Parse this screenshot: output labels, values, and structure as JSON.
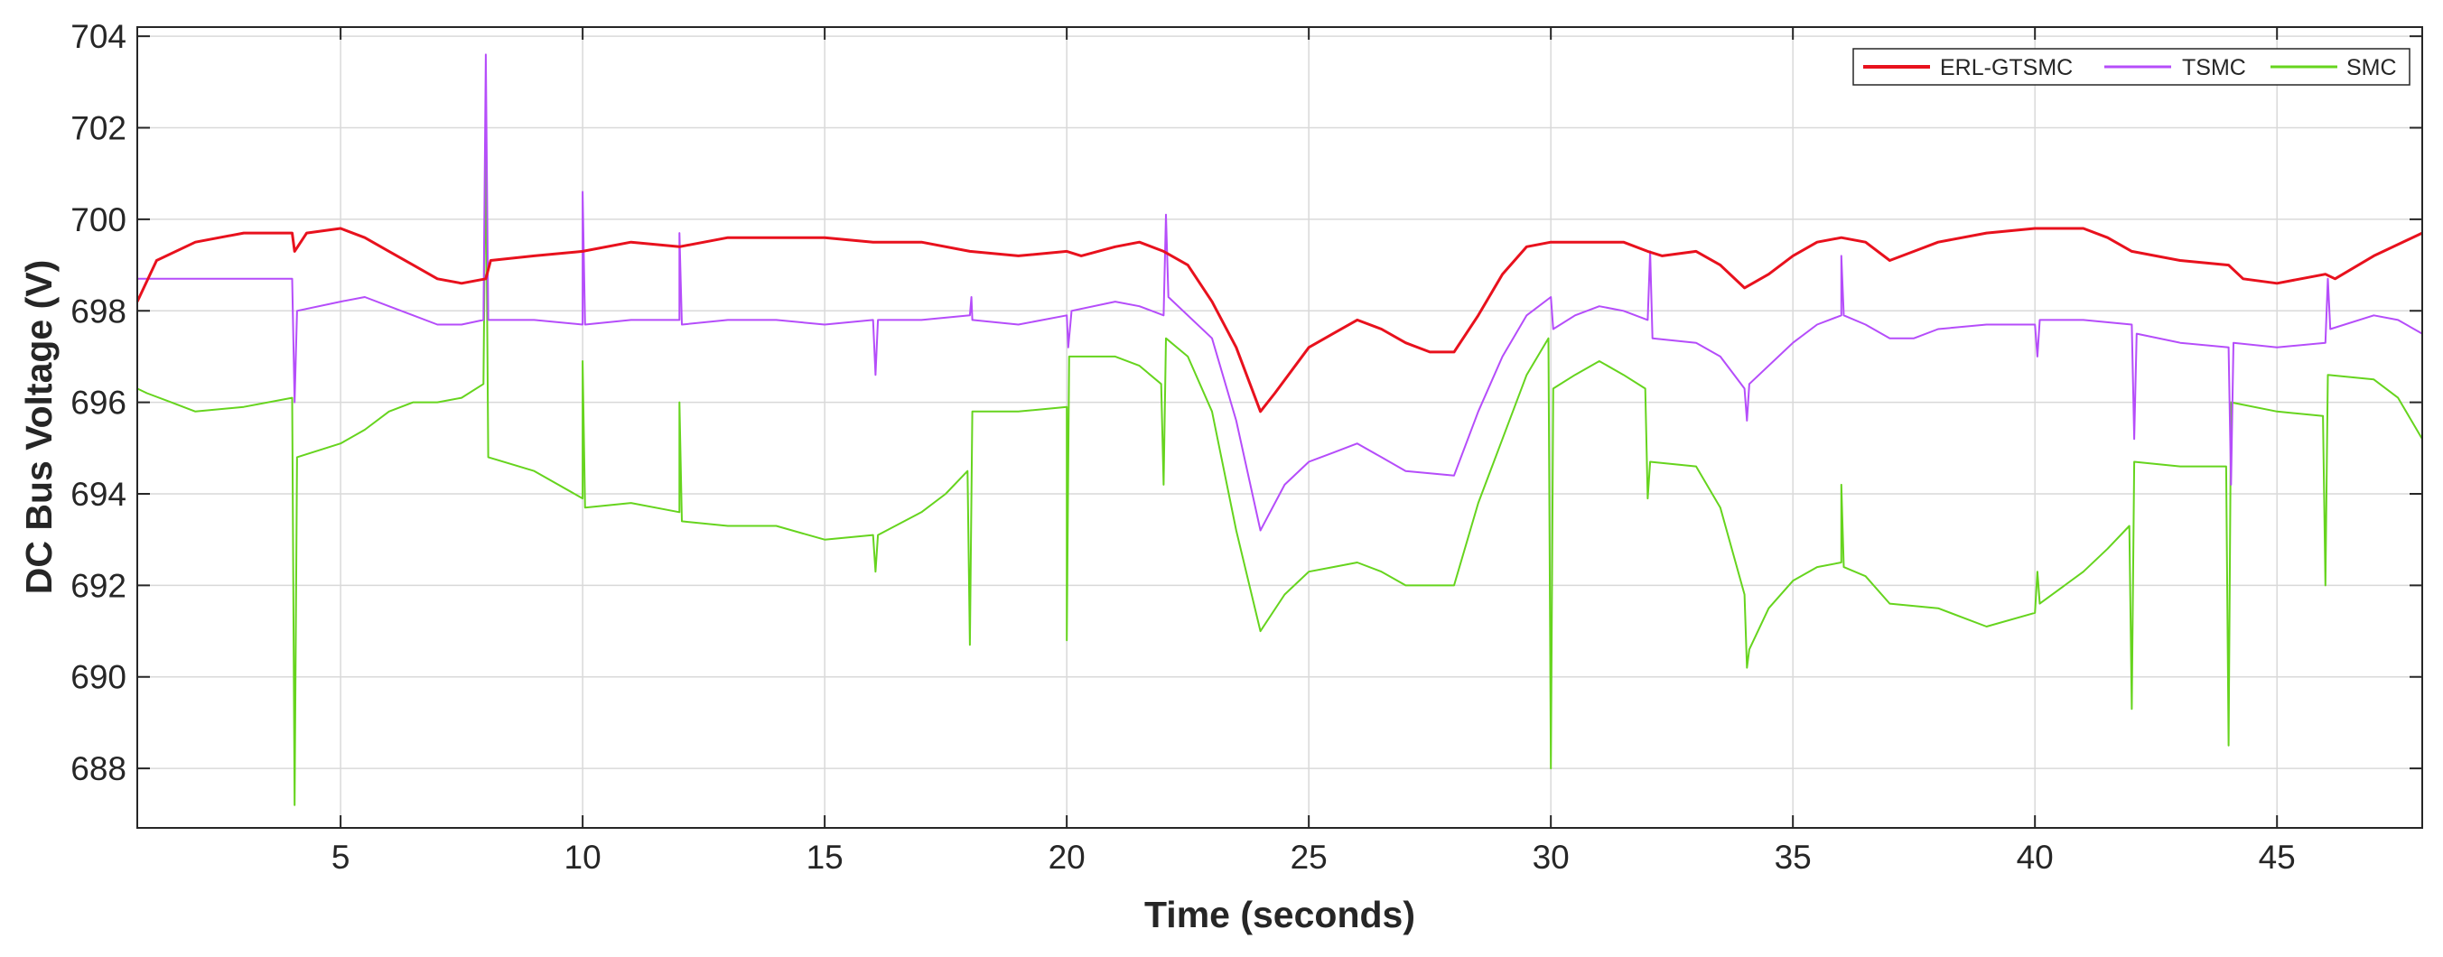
{
  "chart_data": {
    "type": "line",
    "xlabel": "Time (seconds)",
    "ylabel": "DC Bus Voltage (V)",
    "xlim": [
      0.8,
      48.0
    ],
    "ylim": [
      686.7,
      704.2
    ],
    "xticks": [
      5,
      10,
      15,
      20,
      25,
      30,
      35,
      40,
      45
    ],
    "yticks": [
      688,
      690,
      692,
      694,
      696,
      698,
      700,
      702,
      704
    ],
    "grid": true,
    "legend_position": "top-right",
    "series": [
      {
        "name": "ERL-GTSMC",
        "color": "#e8111d",
        "linewidth": 3,
        "points": [
          [
            0.8,
            698.2
          ],
          [
            1.2,
            699.1
          ],
          [
            2,
            699.5
          ],
          [
            3,
            699.7
          ],
          [
            4,
            699.7
          ],
          [
            4.05,
            699.3
          ],
          [
            4.3,
            699.7
          ],
          [
            5,
            699.8
          ],
          [
            5.5,
            699.6
          ],
          [
            6,
            699.3
          ],
          [
            6.5,
            699.0
          ],
          [
            7,
            698.7
          ],
          [
            7.5,
            698.6
          ],
          [
            8,
            698.7
          ],
          [
            8.1,
            699.1
          ],
          [
            9,
            699.2
          ],
          [
            10,
            699.3
          ],
          [
            11,
            699.5
          ],
          [
            12,
            699.4
          ],
          [
            13,
            699.6
          ],
          [
            14,
            699.6
          ],
          [
            15,
            699.6
          ],
          [
            16,
            699.5
          ],
          [
            17,
            699.5
          ],
          [
            18,
            699.3
          ],
          [
            19,
            699.2
          ],
          [
            20,
            699.3
          ],
          [
            20.3,
            699.2
          ],
          [
            21,
            699.4
          ],
          [
            21.5,
            699.5
          ],
          [
            22,
            699.3
          ],
          [
            22.5,
            699.0
          ],
          [
            23,
            698.2
          ],
          [
            23.5,
            697.2
          ],
          [
            24,
            695.8
          ],
          [
            24.3,
            696.2
          ],
          [
            25,
            697.2
          ],
          [
            25.5,
            697.5
          ],
          [
            26,
            697.8
          ],
          [
            26.5,
            697.6
          ],
          [
            27,
            697.3
          ],
          [
            27.5,
            697.1
          ],
          [
            28,
            697.1
          ],
          [
            28.5,
            697.9
          ],
          [
            29,
            698.8
          ],
          [
            29.5,
            699.4
          ],
          [
            30,
            699.5
          ],
          [
            31,
            699.5
          ],
          [
            31.5,
            699.5
          ],
          [
            32,
            699.3
          ],
          [
            32.3,
            699.2
          ],
          [
            33,
            699.3
          ],
          [
            33.5,
            699.0
          ],
          [
            34,
            698.5
          ],
          [
            34.5,
            698.8
          ],
          [
            35,
            699.2
          ],
          [
            35.5,
            699.5
          ],
          [
            36,
            699.6
          ],
          [
            36.5,
            699.5
          ],
          [
            37,
            699.1
          ],
          [
            37.5,
            699.3
          ],
          [
            38,
            699.5
          ],
          [
            39,
            699.7
          ],
          [
            40,
            699.8
          ],
          [
            41,
            699.8
          ],
          [
            41.5,
            699.6
          ],
          [
            42,
            699.3
          ],
          [
            43,
            699.1
          ],
          [
            44,
            699.0
          ],
          [
            44.3,
            698.7
          ],
          [
            45,
            698.6
          ],
          [
            46,
            698.8
          ],
          [
            46.2,
            698.7
          ],
          [
            47,
            699.2
          ],
          [
            48,
            699.7
          ]
        ]
      },
      {
        "name": "TSMC",
        "color": "#b54dfa",
        "linewidth": 2,
        "points": [
          [
            0.8,
            698.7
          ],
          [
            2,
            698.7
          ],
          [
            3,
            698.7
          ],
          [
            4,
            698.7
          ],
          [
            4.05,
            696.0
          ],
          [
            4.1,
            698.0
          ],
          [
            5,
            698.2
          ],
          [
            5.5,
            698.3
          ],
          [
            6,
            698.1
          ],
          [
            6.5,
            697.9
          ],
          [
            7,
            697.7
          ],
          [
            7.5,
            697.7
          ],
          [
            7.95,
            697.8
          ],
          [
            8,
            703.6
          ],
          [
            8.05,
            697.8
          ],
          [
            9,
            697.8
          ],
          [
            10,
            697.7
          ],
          [
            10,
            700.6
          ],
          [
            10.05,
            697.7
          ],
          [
            11,
            697.8
          ],
          [
            12,
            697.8
          ],
          [
            12,
            699.7
          ],
          [
            12.05,
            697.7
          ],
          [
            13,
            697.8
          ],
          [
            14,
            697.8
          ],
          [
            15,
            697.7
          ],
          [
            16,
            697.8
          ],
          [
            16.05,
            696.6
          ],
          [
            16.1,
            697.8
          ],
          [
            17,
            697.8
          ],
          [
            18,
            697.9
          ],
          [
            18.03,
            698.3
          ],
          [
            18.05,
            697.8
          ],
          [
            19,
            697.7
          ],
          [
            20,
            697.9
          ],
          [
            20.03,
            697.2
          ],
          [
            20.1,
            698.0
          ],
          [
            21,
            698.2
          ],
          [
            21.5,
            698.1
          ],
          [
            22,
            697.9
          ],
          [
            22.05,
            700.1
          ],
          [
            22.1,
            698.3
          ],
          [
            23,
            697.4
          ],
          [
            23.5,
            695.6
          ],
          [
            24,
            693.2
          ],
          [
            24.5,
            694.2
          ],
          [
            25,
            694.7
          ],
          [
            25.5,
            694.9
          ],
          [
            26,
            695.1
          ],
          [
            26.5,
            694.8
          ],
          [
            27,
            694.5
          ],
          [
            28,
            694.4
          ],
          [
            28.5,
            695.8
          ],
          [
            29,
            697.0
          ],
          [
            29.5,
            697.9
          ],
          [
            30,
            698.3
          ],
          [
            30.05,
            697.6
          ],
          [
            30.5,
            697.9
          ],
          [
            31,
            698.1
          ],
          [
            31.5,
            698.0
          ],
          [
            32,
            697.8
          ],
          [
            32.05,
            699.3
          ],
          [
            32.1,
            697.4
          ],
          [
            33,
            697.3
          ],
          [
            33.5,
            697.0
          ],
          [
            34,
            696.3
          ],
          [
            34.05,
            695.6
          ],
          [
            34.1,
            696.4
          ],
          [
            35,
            697.3
          ],
          [
            35.5,
            697.7
          ],
          [
            36,
            697.9
          ],
          [
            36,
            699.2
          ],
          [
            36.05,
            697.9
          ],
          [
            36.5,
            697.7
          ],
          [
            37,
            697.4
          ],
          [
            37.5,
            697.4
          ],
          [
            38,
            697.6
          ],
          [
            39,
            697.7
          ],
          [
            40,
            697.7
          ],
          [
            40.05,
            697.0
          ],
          [
            40.1,
            697.8
          ],
          [
            41,
            697.8
          ],
          [
            42,
            697.7
          ],
          [
            42.05,
            695.2
          ],
          [
            42.1,
            697.5
          ],
          [
            43,
            697.3
          ],
          [
            44,
            697.2
          ],
          [
            44.05,
            694.2
          ],
          [
            44.1,
            697.3
          ],
          [
            45,
            697.2
          ],
          [
            46,
            697.3
          ],
          [
            46.05,
            698.7
          ],
          [
            46.1,
            697.6
          ],
          [
            47,
            697.9
          ],
          [
            47.5,
            697.8
          ],
          [
            48,
            697.5
          ]
        ]
      },
      {
        "name": "SMC",
        "color": "#66d41e",
        "linewidth": 2,
        "points": [
          [
            0.8,
            696.3
          ],
          [
            1,
            696.2
          ],
          [
            1.5,
            696.0
          ],
          [
            2,
            695.8
          ],
          [
            3,
            695.9
          ],
          [
            4,
            696.1
          ],
          [
            4.05,
            687.2
          ],
          [
            4.1,
            694.8
          ],
          [
            5,
            695.1
          ],
          [
            5.5,
            695.4
          ],
          [
            6,
            695.8
          ],
          [
            6.5,
            696.0
          ],
          [
            7,
            696.0
          ],
          [
            7.5,
            696.1
          ],
          [
            7.95,
            696.4
          ],
          [
            8,
            701.8
          ],
          [
            8.05,
            694.8
          ],
          [
            9,
            694.5
          ],
          [
            10,
            693.9
          ],
          [
            10,
            696.9
          ],
          [
            10.05,
            693.7
          ],
          [
            11,
            693.8
          ],
          [
            12,
            693.6
          ],
          [
            12,
            696.0
          ],
          [
            12.05,
            693.4
          ],
          [
            13,
            693.3
          ],
          [
            14,
            693.3
          ],
          [
            15,
            693.0
          ],
          [
            16,
            693.1
          ],
          [
            16.05,
            692.3
          ],
          [
            16.1,
            693.1
          ],
          [
            17,
            693.6
          ],
          [
            17.5,
            694.0
          ],
          [
            17.95,
            694.5
          ],
          [
            18,
            690.7
          ],
          [
            18.05,
            695.8
          ],
          [
            19,
            695.8
          ],
          [
            20,
            695.9
          ],
          [
            20,
            690.8
          ],
          [
            20.05,
            697.0
          ],
          [
            21,
            697.0
          ],
          [
            21.5,
            696.8
          ],
          [
            21.95,
            696.4
          ],
          [
            22,
            694.2
          ],
          [
            22.05,
            697.4
          ],
          [
            22.5,
            697.0
          ],
          [
            23,
            695.8
          ],
          [
            23.5,
            693.2
          ],
          [
            24,
            691.0
          ],
          [
            24.5,
            691.8
          ],
          [
            25,
            692.3
          ],
          [
            25.5,
            692.4
          ],
          [
            26,
            692.5
          ],
          [
            26.5,
            692.3
          ],
          [
            27,
            692.0
          ],
          [
            28,
            692.0
          ],
          [
            28.5,
            693.8
          ],
          [
            29,
            695.2
          ],
          [
            29.5,
            696.6
          ],
          [
            29.95,
            697.4
          ],
          [
            30,
            688.0
          ],
          [
            30.05,
            696.3
          ],
          [
            30.5,
            696.6
          ],
          [
            31,
            696.9
          ],
          [
            31.5,
            696.6
          ],
          [
            31.95,
            696.3
          ],
          [
            32,
            693.9
          ],
          [
            32.05,
            694.7
          ],
          [
            33,
            694.6
          ],
          [
            33.5,
            693.7
          ],
          [
            34,
            691.8
          ],
          [
            34.05,
            690.2
          ],
          [
            34.1,
            690.6
          ],
          [
            34.5,
            691.5
          ],
          [
            35,
            692.1
          ],
          [
            35.5,
            692.4
          ],
          [
            36,
            692.5
          ],
          [
            36,
            694.2
          ],
          [
            36.05,
            692.4
          ],
          [
            36.5,
            692.2
          ],
          [
            37,
            691.6
          ],
          [
            38,
            691.5
          ],
          [
            39,
            691.1
          ],
          [
            40,
            691.4
          ],
          [
            40.05,
            692.3
          ],
          [
            40.1,
            691.6
          ],
          [
            41,
            692.3
          ],
          [
            41.5,
            692.8
          ],
          [
            41.95,
            693.3
          ],
          [
            42,
            689.3
          ],
          [
            42.05,
            694.7
          ],
          [
            43,
            694.6
          ],
          [
            43.95,
            694.6
          ],
          [
            44,
            688.5
          ],
          [
            44.05,
            696.0
          ],
          [
            45,
            695.8
          ],
          [
            45.95,
            695.7
          ],
          [
            46,
            692.0
          ],
          [
            46.05,
            696.6
          ],
          [
            47,
            696.5
          ],
          [
            47.5,
            696.1
          ],
          [
            48,
            695.2
          ]
        ]
      }
    ]
  }
}
